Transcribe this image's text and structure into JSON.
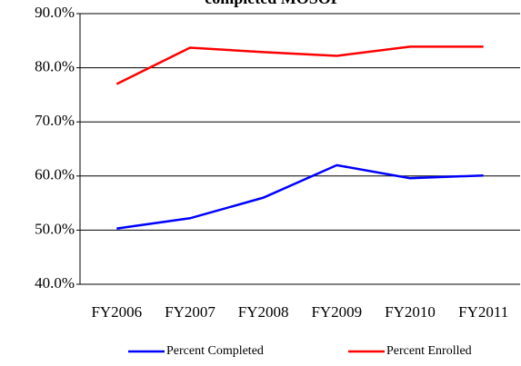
{
  "chart_data": {
    "type": "line",
    "title": "completed MOSOP",
    "categories": [
      "FY2006",
      "FY2007",
      "FY2008",
      "FY2009",
      "FY2010",
      "FY2011"
    ],
    "series": [
      {
        "name": "Percent Completed",
        "color": "#0000ff",
        "values": [
          50.3,
          52.2,
          56.0,
          62.0,
          59.6,
          60.1
        ]
      },
      {
        "name": "Percent Enrolled",
        "color": "#ff0000",
        "values": [
          77.0,
          83.7,
          82.9,
          82.2,
          83.9,
          83.9
        ]
      }
    ],
    "ylim": [
      40,
      90
    ],
    "yticks": [
      {
        "value": 40,
        "label": "40.0%"
      },
      {
        "value": 50,
        "label": "50.0%"
      },
      {
        "value": 60,
        "label": "60.0%"
      },
      {
        "value": 70,
        "label": "70.0%"
      },
      {
        "value": 80,
        "label": "80.0%"
      },
      {
        "value": 90,
        "label": "90.0%"
      }
    ],
    "grid": true,
    "legend": "bottom"
  }
}
